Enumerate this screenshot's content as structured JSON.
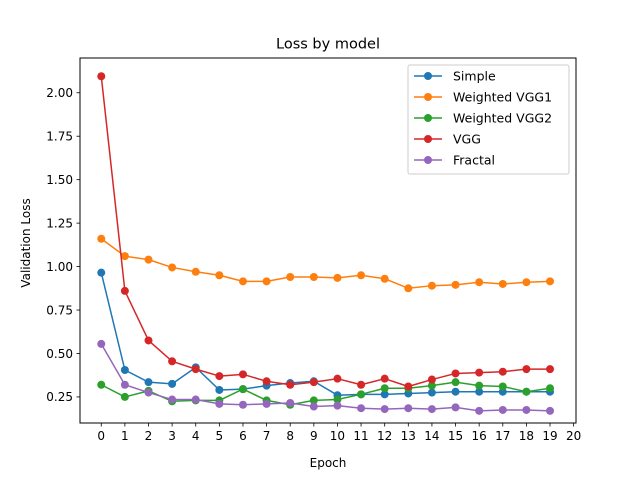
{
  "chart_data": {
    "type": "line",
    "title": "Loss by model",
    "xlabel": "Epoch",
    "ylabel": "Validation Loss",
    "x": [
      0,
      1,
      2,
      3,
      4,
      5,
      6,
      7,
      8,
      9,
      10,
      11,
      12,
      13,
      14,
      15,
      16,
      17,
      18,
      19
    ],
    "xlim": [
      -0.9,
      20.1
    ],
    "ylim": [
      0.1,
      2.2
    ],
    "xticks": [
      "0",
      "1",
      "2",
      "3",
      "4",
      "5",
      "6",
      "7",
      "8",
      "9",
      "10",
      "11",
      "12",
      "13",
      "14",
      "15",
      "16",
      "17",
      "18",
      "19",
      "20"
    ],
    "yticks": [
      "0.25",
      "0.50",
      "0.75",
      "1.00",
      "1.25",
      "1.50",
      "1.75",
      "2.00"
    ],
    "ytick_values": [
      0.25,
      0.5,
      0.75,
      1.0,
      1.25,
      1.5,
      1.75,
      2.0
    ],
    "grid": false,
    "legend_position": "top-right",
    "series": [
      {
        "name": "Simple",
        "color": "#1f77b4",
        "values": [
          0.965,
          0.405,
          0.335,
          0.325,
          0.42,
          0.29,
          0.295,
          0.315,
          0.33,
          0.34,
          0.26,
          0.265,
          0.265,
          0.27,
          0.275,
          0.28,
          0.28,
          0.28,
          0.28,
          0.28
        ]
      },
      {
        "name": "Weighted VGG1",
        "color": "#ff7f0e",
        "values": [
          1.16,
          1.06,
          1.04,
          0.995,
          0.97,
          0.95,
          0.915,
          0.915,
          0.94,
          0.94,
          0.935,
          0.95,
          0.93,
          0.875,
          0.89,
          0.895,
          0.91,
          0.9,
          0.91,
          0.915
        ]
      },
      {
        "name": "Weighted VGG2",
        "color": "#2ca02c",
        "values": [
          0.32,
          0.25,
          0.285,
          0.225,
          0.23,
          0.23,
          0.295,
          0.23,
          0.205,
          0.23,
          0.235,
          0.265,
          0.3,
          0.3,
          0.315,
          0.335,
          0.315,
          0.31,
          0.28,
          0.3
        ]
      },
      {
        "name": "VGG",
        "color": "#d62728",
        "values": [
          2.095,
          0.86,
          0.575,
          0.455,
          0.41,
          0.37,
          0.38,
          0.34,
          0.32,
          0.335,
          0.355,
          0.32,
          0.355,
          0.31,
          0.35,
          0.385,
          0.39,
          0.395,
          0.41,
          0.41
        ]
      },
      {
        "name": "Fractal",
        "color": "#9467bd",
        "values": [
          0.555,
          0.32,
          0.275,
          0.235,
          0.235,
          0.21,
          0.205,
          0.21,
          0.215,
          0.195,
          0.2,
          0.185,
          0.18,
          0.185,
          0.18,
          0.19,
          0.17,
          0.175,
          0.175,
          0.17
        ]
      }
    ]
  }
}
